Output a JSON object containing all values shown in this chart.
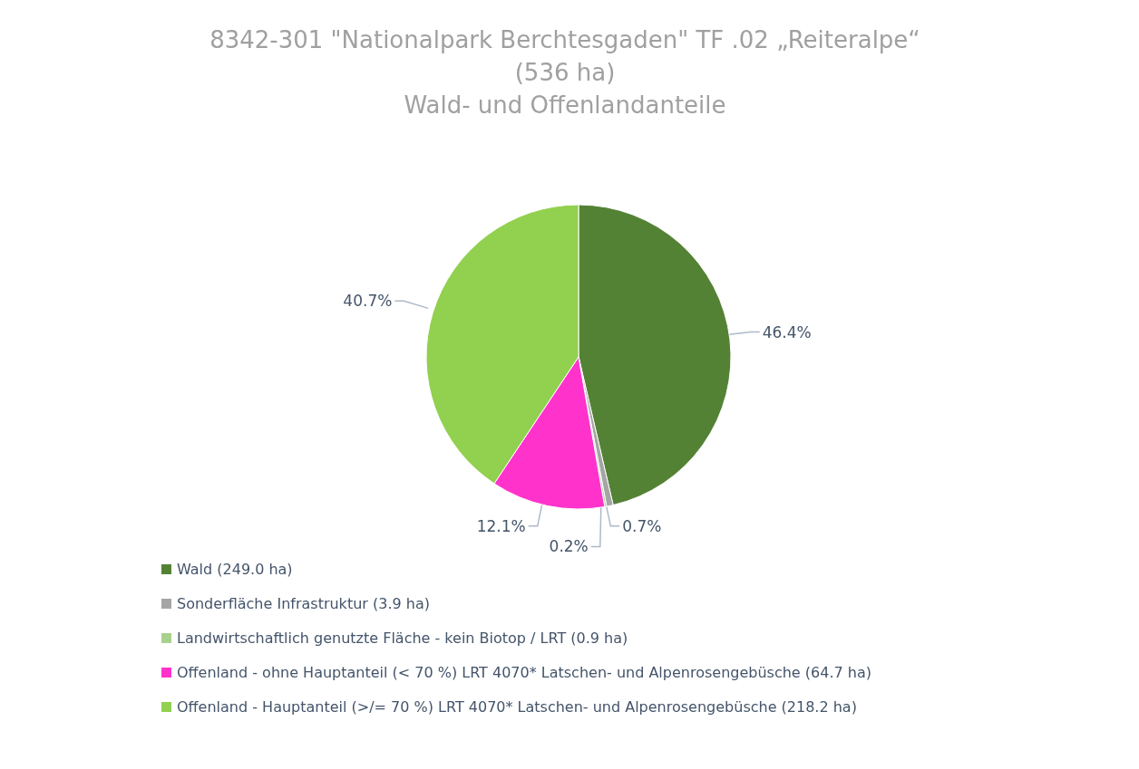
{
  "chart_data": {
    "type": "pie",
    "title": "8342-301 \"Nationalpark Berchtesgaden\" TF .02 „Reiteralpe“\n(536 ha)\nWald- und Offenlandanteile",
    "categories": [
      "Wald (249.0 ha)",
      "Sonderfläche Infrastruktur (3.9 ha)",
      "Landwirtschaftlich genutzte Fläche - kein Biotop / LRT (0.9 ha)",
      "Offenland - ohne Hauptanteil (< 70 %) LRT 4070* Latschen- und Alpenrosengebüsche (64.7 ha)",
      "Offenland - Hauptanteil (>/= 70 %) LRT 4070* Latschen- und Alpenrosengebüsche (218.2 ha)"
    ],
    "values": [
      46.4,
      0.7,
      0.2,
      12.1,
      40.7
    ],
    "value_labels": [
      "46.4%",
      "0.7%",
      "0.2%",
      "12.1%",
      "40.7%"
    ],
    "colors": [
      "#548235",
      "#a5a5a5",
      "#a9d18e",
      "#ff33cc",
      "#92d050"
    ],
    "legend": "bottom"
  }
}
